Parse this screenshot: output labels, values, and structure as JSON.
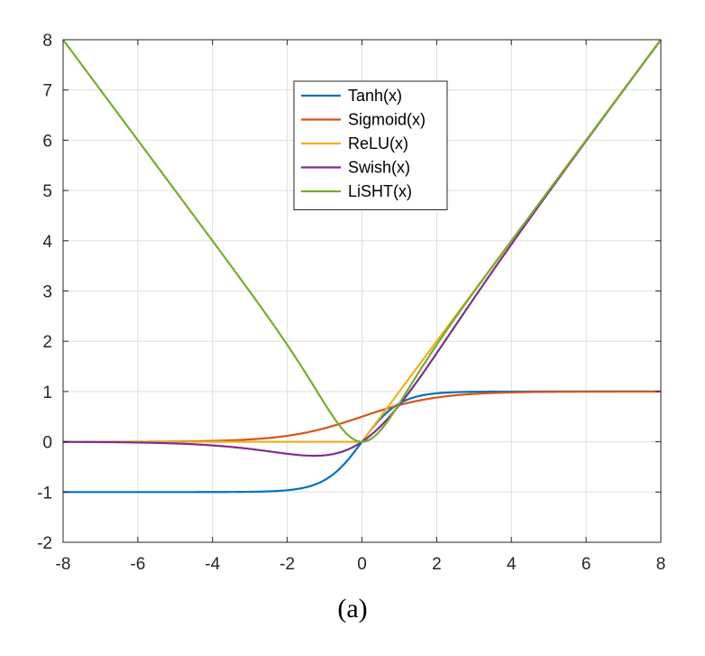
{
  "chart_data": {
    "type": "line",
    "title": "",
    "xlabel": "",
    "ylabel": "",
    "xlim": [
      -8,
      8
    ],
    "ylim": [
      -2,
      8
    ],
    "xticks": [
      -8,
      -6,
      -4,
      -2,
      0,
      2,
      4,
      6,
      8
    ],
    "yticks": [
      -2,
      -1,
      0,
      1,
      2,
      3,
      4,
      5,
      6,
      7,
      8
    ],
    "grid": true,
    "legend_position": "top-center",
    "series": [
      {
        "name": "Tanh(x)",
        "function": "tanh",
        "color": "#0072BD"
      },
      {
        "name": "Sigmoid(x)",
        "function": "sigmoid",
        "color": "#D95319"
      },
      {
        "name": "ReLU(x)",
        "function": "relu",
        "color": "#EDB120"
      },
      {
        "name": "Swish(x)",
        "function": "swish",
        "color": "#7E2F8E"
      },
      {
        "name": "LiSHT(x)",
        "function": "lisht",
        "color": "#77AC30"
      }
    ]
  },
  "caption": "(a)"
}
